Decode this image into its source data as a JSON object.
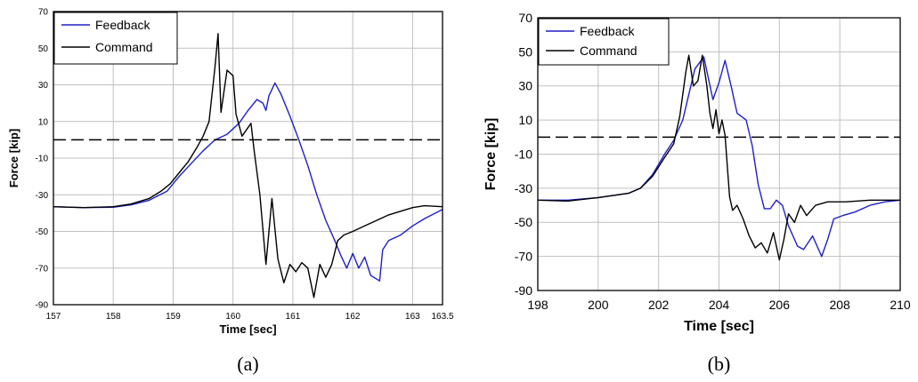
{
  "chart_data": [
    {
      "type": "line",
      "caption": "(a)",
      "xlabel": "Time [sec]",
      "ylabel": "Force [kip]",
      "xlim": [
        157,
        163.5
      ],
      "ylim": [
        -90,
        70
      ],
      "xticks": [
        157,
        158,
        159,
        160,
        161,
        162,
        163,
        163.5
      ],
      "xtick_labels": [
        "157",
        "158",
        "159",
        "160",
        "161",
        "162",
        "163",
        "163.5"
      ],
      "yticks": [
        -90,
        -70,
        -50,
        -30,
        -10,
        10,
        30,
        50,
        70
      ],
      "ytick_labels": [
        "-90",
        "-70",
        "-50",
        "-30",
        "-10",
        "10",
        "30",
        "50",
        "70"
      ],
      "grid": true,
      "legend_position": "top-left",
      "reference_line": 0,
      "series": [
        {
          "name": "Feedback",
          "color": "#1f1fc8",
          "points": [
            [
              157,
              -36.5
            ],
            [
              157.5,
              -37
            ],
            [
              158,
              -36.8
            ],
            [
              158.3,
              -35.5
            ],
            [
              158.6,
              -33
            ],
            [
              158.9,
              -28
            ],
            [
              159.1,
              -20
            ],
            [
              159.3,
              -13
            ],
            [
              159.5,
              -6
            ],
            [
              159.7,
              0
            ],
            [
              159.9,
              3
            ],
            [
              160.1,
              9
            ],
            [
              160.25,
              16
            ],
            [
              160.4,
              22
            ],
            [
              160.5,
              20
            ],
            [
              160.55,
              16
            ],
            [
              160.6,
              24
            ],
            [
              160.7,
              31
            ],
            [
              160.8,
              25
            ],
            [
              160.95,
              13
            ],
            [
              161.1,
              0
            ],
            [
              161.25,
              -14
            ],
            [
              161.4,
              -30
            ],
            [
              161.55,
              -44
            ],
            [
              161.7,
              -55
            ],
            [
              161.8,
              -63
            ],
            [
              161.9,
              -70
            ],
            [
              162.0,
              -62
            ],
            [
              162.1,
              -70
            ],
            [
              162.2,
              -64
            ],
            [
              162.3,
              -74
            ],
            [
              162.45,
              -77
            ],
            [
              162.5,
              -60
            ],
            [
              162.6,
              -55
            ],
            [
              162.8,
              -52
            ],
            [
              163.0,
              -47
            ],
            [
              163.2,
              -43
            ],
            [
              163.5,
              -38
            ]
          ]
        },
        {
          "name": "Command",
          "color": "#000000",
          "points": [
            [
              157,
              -36.5
            ],
            [
              157.5,
              -37
            ],
            [
              158,
              -36.5
            ],
            [
              158.3,
              -35
            ],
            [
              158.6,
              -32
            ],
            [
              158.8,
              -28
            ],
            [
              158.95,
              -24
            ],
            [
              159.1,
              -18
            ],
            [
              159.25,
              -12
            ],
            [
              159.4,
              -4
            ],
            [
              159.5,
              2
            ],
            [
              159.6,
              10
            ],
            [
              159.7,
              40
            ],
            [
              159.75,
              58
            ],
            [
              159.8,
              15
            ],
            [
              159.9,
              38
            ],
            [
              160.0,
              35
            ],
            [
              160.05,
              14
            ],
            [
              160.15,
              2
            ],
            [
              160.3,
              9
            ],
            [
              160.35,
              -5
            ],
            [
              160.45,
              -30
            ],
            [
              160.55,
              -68
            ],
            [
              160.65,
              -32
            ],
            [
              160.75,
              -65
            ],
            [
              160.85,
              -78
            ],
            [
              160.95,
              -68
            ],
            [
              161.05,
              -72
            ],
            [
              161.15,
              -67
            ],
            [
              161.25,
              -70
            ],
            [
              161.35,
              -86
            ],
            [
              161.45,
              -68
            ],
            [
              161.55,
              -75
            ],
            [
              161.65,
              -68
            ],
            [
              161.75,
              -55
            ],
            [
              161.85,
              -52
            ],
            [
              162.0,
              -50
            ],
            [
              162.2,
              -47
            ],
            [
              162.4,
              -44
            ],
            [
              162.6,
              -41
            ],
            [
              162.8,
              -39
            ],
            [
              163.0,
              -37
            ],
            [
              163.2,
              -36
            ],
            [
              163.5,
              -36.5
            ]
          ]
        }
      ]
    },
    {
      "type": "line",
      "caption": "(b)",
      "xlabel": "Time [sec]",
      "ylabel": "Force [kip]",
      "xlim": [
        198,
        210
      ],
      "ylim": [
        -90,
        70
      ],
      "xticks": [
        198,
        200,
        202,
        204,
        206,
        208,
        210
      ],
      "xtick_labels": [
        "198",
        "200",
        "202",
        "204",
        "206",
        "208",
        "210"
      ],
      "yticks": [
        -90,
        -70,
        -50,
        -30,
        -10,
        10,
        30,
        50,
        70
      ],
      "ytick_labels": [
        "-90",
        "-70",
        "-50",
        "-30",
        "-10",
        "10",
        "30",
        "50",
        "70"
      ],
      "grid": true,
      "legend_position": "top-left",
      "reference_line": 0,
      "series": [
        {
          "name": "Feedback",
          "color": "#1f1fc8",
          "points": [
            [
              198,
              -37
            ],
            [
              199,
              -37
            ],
            [
              200,
              -35.5
            ],
            [
              201,
              -33
            ],
            [
              201.4,
              -30
            ],
            [
              201.8,
              -22
            ],
            [
              202.2,
              -10
            ],
            [
              202.5,
              -2
            ],
            [
              202.8,
              10
            ],
            [
              203.0,
              25
            ],
            [
              203.2,
              40
            ],
            [
              203.5,
              47
            ],
            [
              203.8,
              22
            ],
            [
              204.0,
              32
            ],
            [
              204.2,
              45
            ],
            [
              204.4,
              30
            ],
            [
              204.6,
              14
            ],
            [
              204.9,
              10
            ],
            [
              205.1,
              -5
            ],
            [
              205.3,
              -28
            ],
            [
              205.5,
              -42
            ],
            [
              205.7,
              -42
            ],
            [
              205.9,
              -37
            ],
            [
              206.1,
              -40
            ],
            [
              206.3,
              -52
            ],
            [
              206.6,
              -64
            ],
            [
              206.8,
              -66
            ],
            [
              207.1,
              -58
            ],
            [
              207.4,
              -70
            ],
            [
              207.6,
              -60
            ],
            [
              207.8,
              -48
            ],
            [
              208.1,
              -46
            ],
            [
              208.5,
              -44
            ],
            [
              209,
              -40
            ],
            [
              209.5,
              -38
            ],
            [
              210,
              -37
            ]
          ]
        },
        {
          "name": "Command",
          "color": "#000000",
          "points": [
            [
              198,
              -37
            ],
            [
              199,
              -37.5
            ],
            [
              200,
              -35.5
            ],
            [
              201,
              -33
            ],
            [
              201.4,
              -30
            ],
            [
              201.8,
              -23
            ],
            [
              202.2,
              -12
            ],
            [
              202.5,
              -4
            ],
            [
              202.7,
              12
            ],
            [
              202.9,
              38
            ],
            [
              203.0,
              48
            ],
            [
              203.15,
              30
            ],
            [
              203.3,
              33
            ],
            [
              203.45,
              48
            ],
            [
              203.6,
              30
            ],
            [
              203.7,
              14
            ],
            [
              203.8,
              5
            ],
            [
              203.9,
              16
            ],
            [
              204.0,
              2
            ],
            [
              204.1,
              10
            ],
            [
              204.2,
              1
            ],
            [
              204.35,
              -35
            ],
            [
              204.45,
              -43
            ],
            [
              204.6,
              -40
            ],
            [
              204.8,
              -48
            ],
            [
              205.0,
              -58
            ],
            [
              205.2,
              -65
            ],
            [
              205.4,
              -62
            ],
            [
              205.6,
              -68
            ],
            [
              205.8,
              -56
            ],
            [
              206.0,
              -72
            ],
            [
              206.15,
              -60
            ],
            [
              206.3,
              -45
            ],
            [
              206.5,
              -50
            ],
            [
              206.7,
              -40
            ],
            [
              206.9,
              -46
            ],
            [
              207.2,
              -40
            ],
            [
              207.6,
              -38
            ],
            [
              208.2,
              -38
            ],
            [
              209,
              -37
            ],
            [
              210,
              -37
            ]
          ]
        }
      ]
    }
  ]
}
